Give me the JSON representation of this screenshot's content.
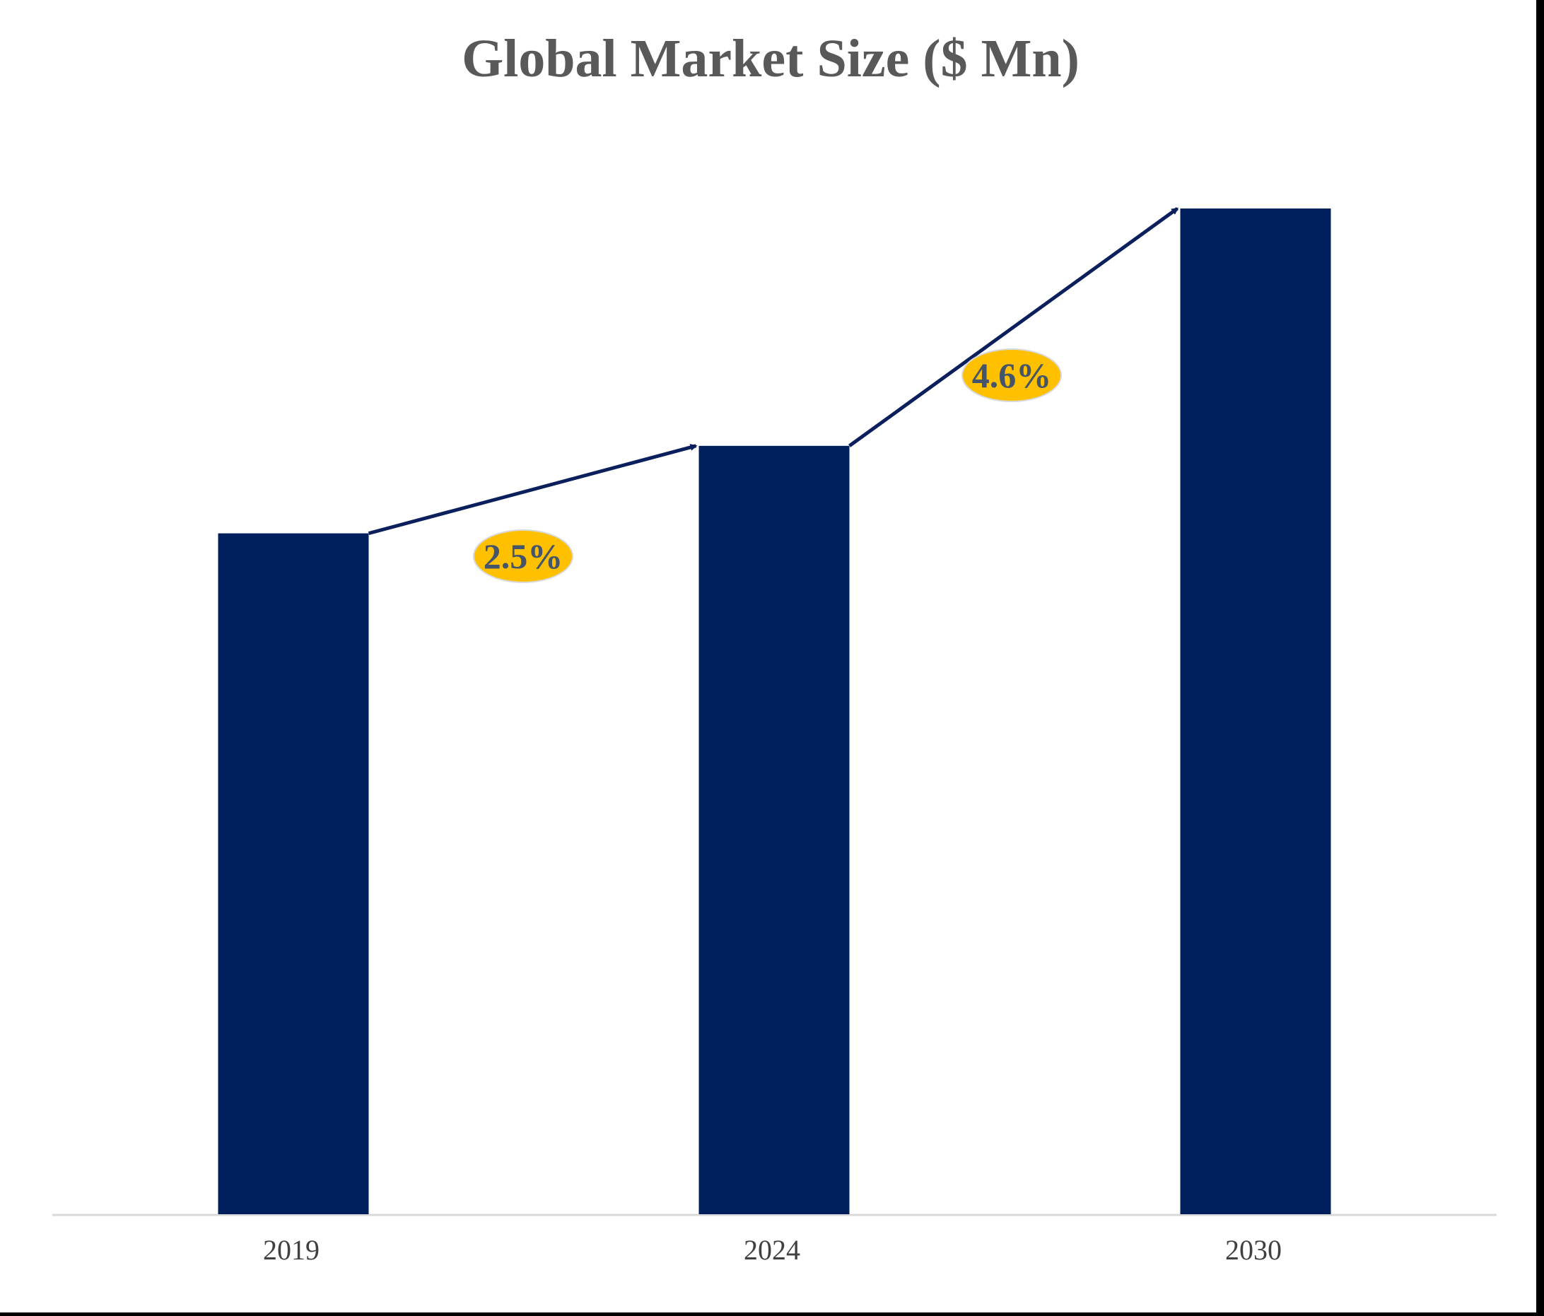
{
  "chart_data": {
    "type": "bar",
    "title": "Global Market Size ($ Mn)",
    "xlabel": "",
    "ylabel": "",
    "categories": [
      "2019",
      "2024",
      "2030"
    ],
    "values": [
      67.7,
      76.4,
      100
    ],
    "value_scale_note": "relative bar heights (no y-axis printed)",
    "ylim": [
      0,
      100
    ],
    "grid": false,
    "legend": "none",
    "annotations": [
      {
        "from": "2019",
        "to": "2024",
        "label": "2.5%"
      },
      {
        "from": "2024",
        "to": "2030",
        "label": "4.6%"
      }
    ],
    "colors": {
      "bar": "#001F5C",
      "arrow": "#0A1F5C",
      "badge": "#FFC000",
      "badge_text": "#44546A",
      "title": "#595959"
    }
  }
}
